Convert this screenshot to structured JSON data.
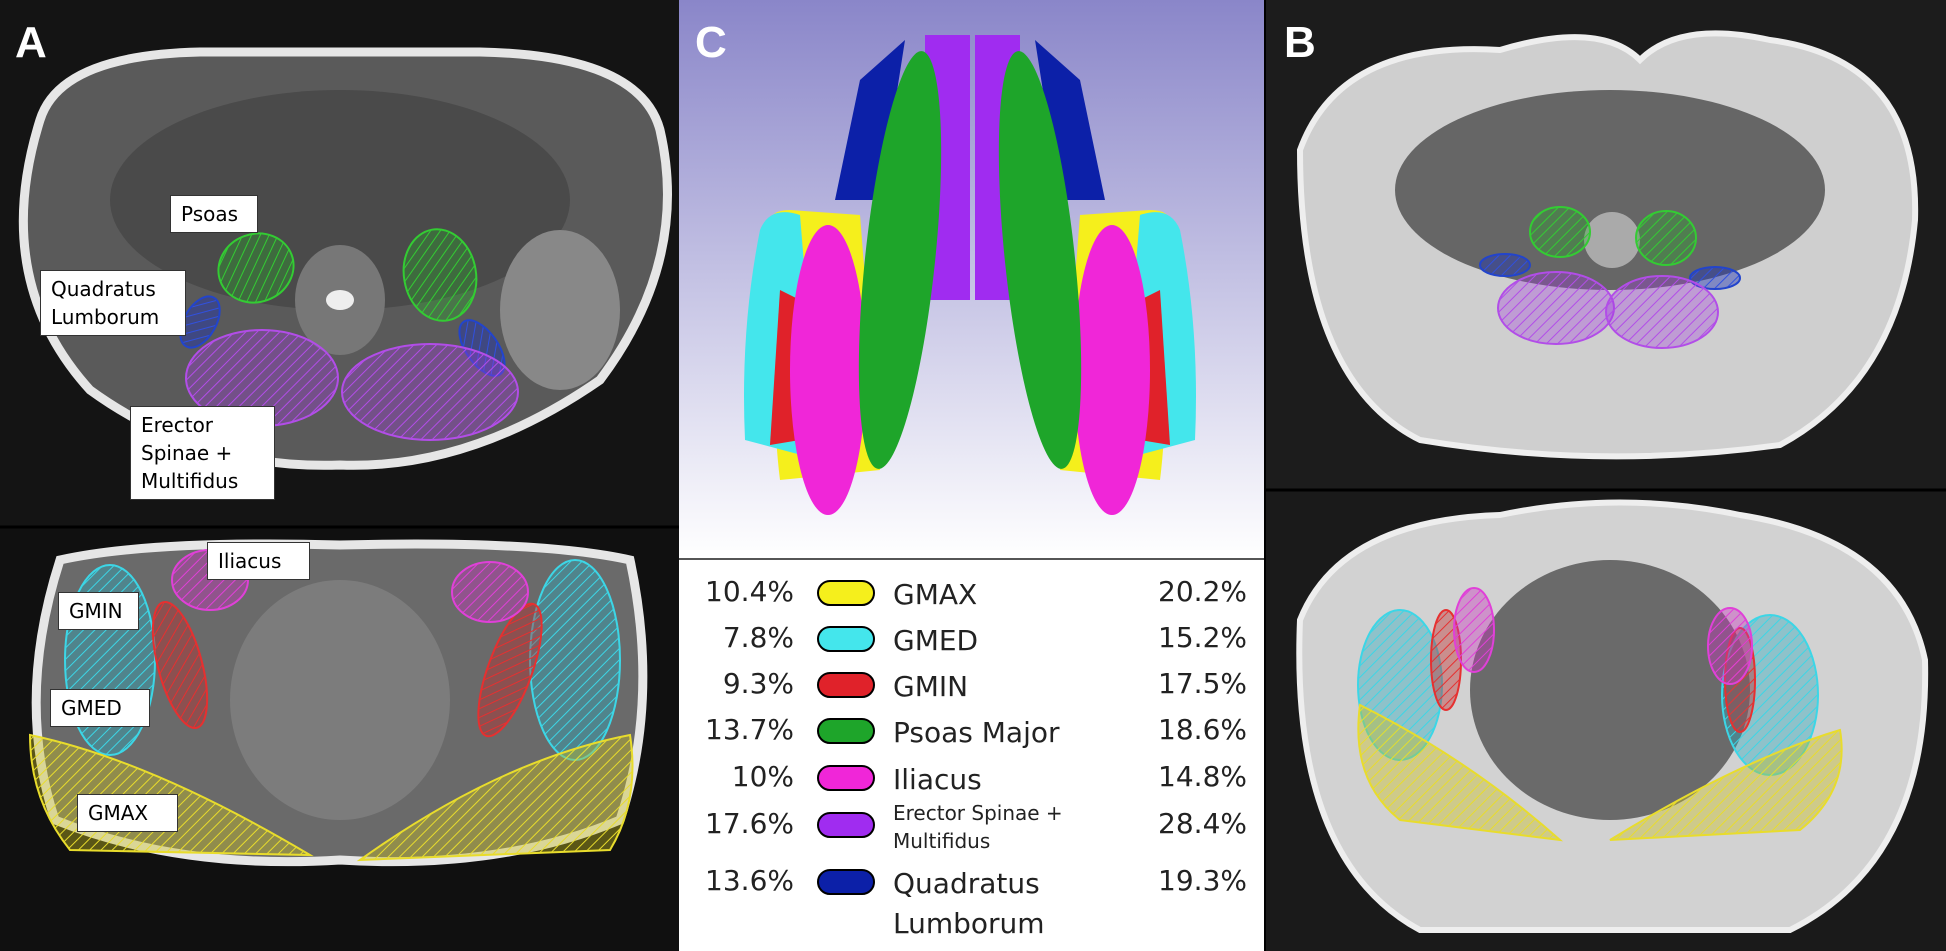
{
  "panels": {
    "a": {
      "label": "A",
      "annotations": [
        {
          "lines": [
            "Psoas"
          ]
        },
        {
          "lines": [
            "Quadratus",
            "Lumborum"
          ]
        },
        {
          "lines": [
            "Erector",
            "Spinae +",
            "Multifidus"
          ]
        },
        {
          "lines": [
            "Iliacus"
          ]
        },
        {
          "lines": [
            "GMIN"
          ]
        },
        {
          "lines": [
            "GMED"
          ]
        },
        {
          "lines": [
            "GMAX"
          ]
        }
      ]
    },
    "b": {
      "label": "B"
    },
    "c": {
      "label": "C",
      "legend": {
        "rows": [
          {
            "left": "10.4%",
            "name": [
              "GMAX"
            ],
            "right": "20.2%",
            "color": "#f5ef1c"
          },
          {
            "left": "7.8%",
            "name": [
              "GMED"
            ],
            "right": "15.2%",
            "color": "#44e6ec"
          },
          {
            "left": "9.3%",
            "name": [
              "GMIN"
            ],
            "right": "17.5%",
            "color": "#e0222a"
          },
          {
            "left": "13.7%",
            "name": [
              "Psoas Major"
            ],
            "right": "18.6%",
            "color": "#1ea52a"
          },
          {
            "left": "10%",
            "name": [
              "Iliacus"
            ],
            "right": "14.8%",
            "color": "#f026d8"
          },
          {
            "left": "17.6%",
            "name": [
              "Erector Spinae +",
              "Multifidus"
            ],
            "right": "28.4%",
            "color": "#a02cf0"
          },
          {
            "left": "13.6%",
            "name": [
              "Quadratus",
              "Lumborum"
            ],
            "right": "19.3%",
            "color": "#0c20a8"
          }
        ]
      }
    }
  }
}
